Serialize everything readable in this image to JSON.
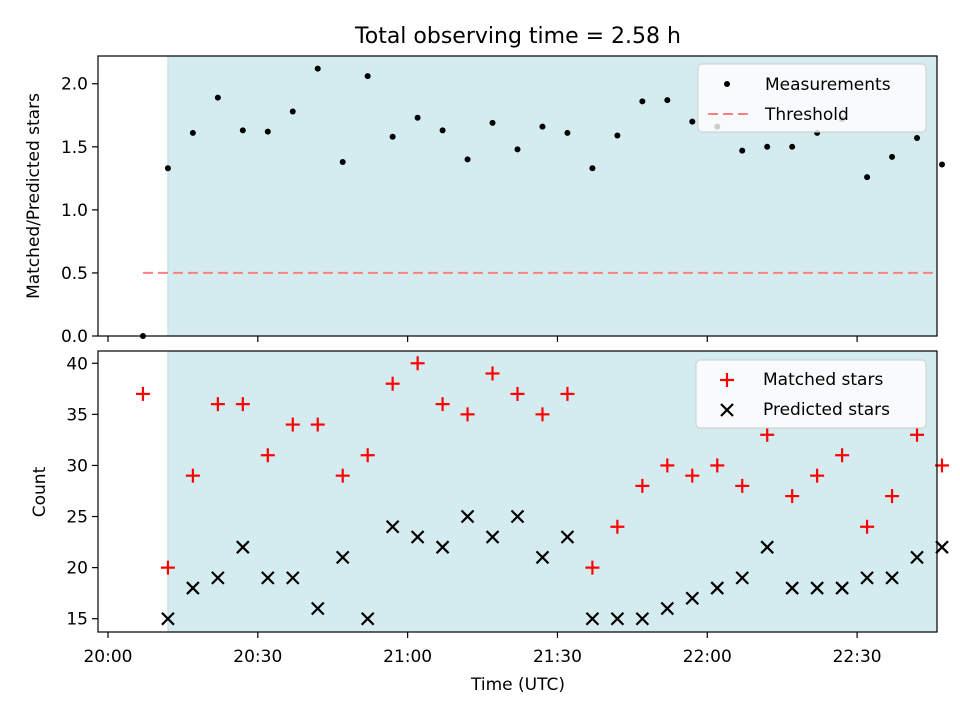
{
  "chart_data": [
    {
      "type": "scatter",
      "title": "Total observing time = 2.58 h",
      "ylabel": "Matched/Predicted stars",
      "xlabel": "",
      "x_unit": "time_of_day",
      "xlim": [
        "19:58",
        "22:46"
      ],
      "ylim": [
        0,
        2.22
      ],
      "yticks": [
        0.0,
        0.5,
        1.0,
        1.5,
        2.0
      ],
      "ytick_labels": [
        "0.0",
        "0.5",
        "1.0",
        "1.5",
        "2.0"
      ],
      "shaded_interval": {
        "x_start": "20:12",
        "x_end": "22:46",
        "color": "#d4ebf0"
      },
      "legend": {
        "placement": "upper right",
        "entries": [
          "Measurements",
          "Threshold"
        ]
      },
      "series": [
        {
          "name": "Measurements",
          "marker": "dot",
          "color": "#000000",
          "x": [
            "20:07",
            "20:12",
            "20:17",
            "20:22",
            "20:27",
            "20:32",
            "20:37",
            "20:42",
            "20:47",
            "20:52",
            "20:57",
            "21:02",
            "21:07",
            "21:12",
            "21:17",
            "21:22",
            "21:27",
            "21:32",
            "21:37",
            "21:42",
            "21:47",
            "21:52",
            "21:57",
            "22:02",
            "22:07",
            "22:12",
            "22:17",
            "22:22",
            "22:27",
            "22:32",
            "22:37",
            "22:42",
            "22:47"
          ],
          "y": [
            0.0,
            1.33,
            1.61,
            1.89,
            1.63,
            1.62,
            1.78,
            2.12,
            1.38,
            2.06,
            1.58,
            1.73,
            1.63,
            1.4,
            1.69,
            1.48,
            1.66,
            1.61,
            1.33,
            1.59,
            1.86,
            1.87,
            1.7,
            1.66,
            1.47,
            1.5,
            1.5,
            1.61,
            1.72,
            1.26,
            1.42,
            1.57,
            1.36
          ]
        },
        {
          "name": "Threshold",
          "style": "dashed line",
          "color": "#ff7f7f",
          "x": [
            "20:07",
            "22:46"
          ],
          "y": [
            0.5,
            0.5
          ]
        }
      ]
    },
    {
      "type": "scatter",
      "title": "",
      "ylabel": "Count",
      "xlabel": "Time (UTC)",
      "x_unit": "time_of_day",
      "xlim": [
        "19:58",
        "22:46"
      ],
      "xticks": [
        "20:00",
        "20:30",
        "21:00",
        "21:30",
        "22:00",
        "22:30"
      ],
      "ylim": [
        13.7,
        41.2
      ],
      "yticks": [
        15,
        20,
        25,
        30,
        35,
        40
      ],
      "ytick_labels": [
        "15",
        "20",
        "25",
        "30",
        "35",
        "40"
      ],
      "shaded_interval": {
        "x_start": "20:12",
        "x_end": "22:46",
        "color": "#d4ebf0"
      },
      "legend": {
        "placement": "upper right",
        "entries": [
          "Matched stars",
          "Predicted stars"
        ]
      },
      "series": [
        {
          "name": "Matched stars",
          "marker": "plus",
          "color": "#ff0000",
          "x": [
            "20:07",
            "20:12",
            "20:17",
            "20:22",
            "20:27",
            "20:32",
            "20:37",
            "20:42",
            "20:47",
            "20:52",
            "20:57",
            "21:02",
            "21:07",
            "21:12",
            "21:17",
            "21:22",
            "21:27",
            "21:32",
            "21:37",
            "21:42",
            "21:47",
            "21:52",
            "21:57",
            "22:02",
            "22:07",
            "22:12",
            "22:17",
            "22:22",
            "22:27",
            "22:32",
            "22:37",
            "22:42",
            "22:47"
          ],
          "y": [
            37,
            20,
            29,
            36,
            36,
            31,
            34,
            34,
            29,
            31,
            38,
            40,
            36,
            35,
            39,
            37,
            35,
            37,
            20,
            24,
            28,
            30,
            29,
            30,
            28,
            33,
            27,
            29,
            31,
            24,
            27,
            33,
            30
          ]
        },
        {
          "name": "Predicted stars",
          "marker": "x",
          "color": "#000000",
          "x": [
            "20:12",
            "20:17",
            "20:22",
            "20:27",
            "20:32",
            "20:37",
            "20:42",
            "20:47",
            "20:52",
            "20:57",
            "21:02",
            "21:07",
            "21:12",
            "21:17",
            "21:22",
            "21:27",
            "21:32",
            "21:37",
            "21:42",
            "21:47",
            "21:52",
            "21:57",
            "22:02",
            "22:07",
            "22:12",
            "22:17",
            "22:22",
            "22:27",
            "22:32",
            "22:37",
            "22:42",
            "22:47"
          ],
          "y": [
            15,
            18,
            19,
            22,
            19,
            19,
            16,
            21,
            15,
            24,
            23,
            22,
            25,
            23,
            25,
            21,
            23,
            15,
            15,
            15,
            16,
            17,
            18,
            19,
            22,
            18,
            18,
            18,
            19,
            19,
            21,
            22
          ]
        }
      ]
    }
  ]
}
